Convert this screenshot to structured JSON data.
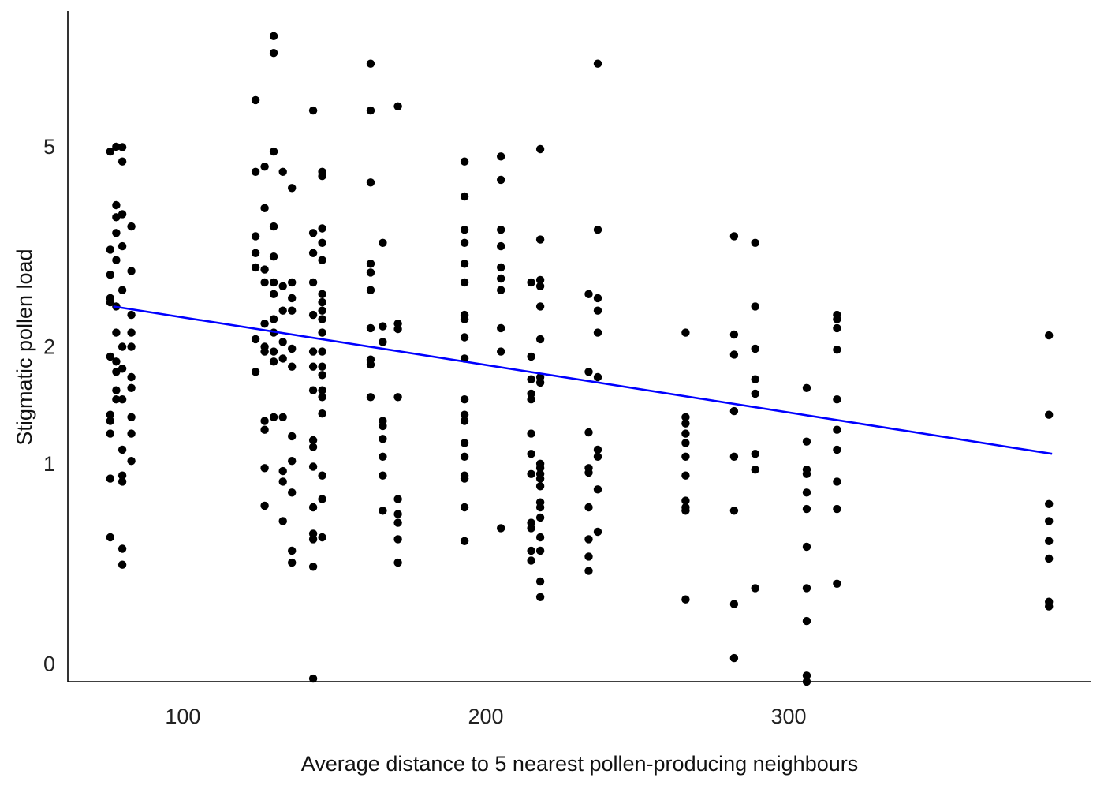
{
  "chart_data": {
    "type": "scatter",
    "title": "",
    "xlabel": "Average distance to 5 nearest pollen-producing neighbours",
    "ylabel": "Stigmatic pollen load",
    "xlim": [
      62,
      400
    ],
    "y_scale": "log1p",
    "ylim": [
      -0.06,
      8.6
    ],
    "x_ticks": [
      100,
      200,
      300
    ],
    "y_ticks": [
      0,
      1,
      2,
      5
    ],
    "grid": false,
    "legend": "none",
    "colors": {
      "points": "#000000",
      "fit": "#0000ff"
    },
    "fit_line": {
      "x": [
        77,
        387
      ],
      "y": [
        2.45,
        1.07
      ]
    },
    "points": [
      [
        76,
        4.9
      ],
      [
        76,
        3.2
      ],
      [
        76,
        2.85
      ],
      [
        76,
        2.55
      ],
      [
        76,
        2.5
      ],
      [
        76,
        1.9
      ],
      [
        76,
        1.37
      ],
      [
        76,
        1.32
      ],
      [
        76,
        1.22
      ],
      [
        76,
        0.9
      ],
      [
        76,
        0.55
      ],
      [
        78,
        5.0
      ],
      [
        78,
        3.9
      ],
      [
        78,
        3.7
      ],
      [
        78,
        3.45
      ],
      [
        78,
        3.05
      ],
      [
        78,
        2.45
      ],
      [
        78,
        2.15
      ],
      [
        78,
        1.85
      ],
      [
        78,
        1.75
      ],
      [
        78,
        1.58
      ],
      [
        78,
        1.5
      ],
      [
        80,
        4.99
      ],
      [
        80,
        4.7
      ],
      [
        80,
        3.75
      ],
      [
        80,
        3.25
      ],
      [
        80,
        2.65
      ],
      [
        80,
        2.0
      ],
      [
        80,
        1.78
      ],
      [
        80,
        1.5
      ],
      [
        80,
        1.1
      ],
      [
        80,
        0.92
      ],
      [
        80,
        0.88
      ],
      [
        80,
        0.49
      ],
      [
        80,
        0.41
      ],
      [
        83,
        3.55
      ],
      [
        83,
        2.9
      ],
      [
        83,
        2.35
      ],
      [
        83,
        2.15
      ],
      [
        83,
        2.0
      ],
      [
        83,
        1.7
      ],
      [
        83,
        1.6
      ],
      [
        83,
        1.35
      ],
      [
        83,
        1.22
      ],
      [
        83,
        1.02
      ],
      [
        124,
        6.05
      ],
      [
        124,
        4.5
      ],
      [
        124,
        3.4
      ],
      [
        124,
        3.15
      ],
      [
        124,
        2.95
      ],
      [
        124,
        2.08
      ],
      [
        124,
        1.75
      ],
      [
        127,
        3.85
      ],
      [
        127,
        4.6
      ],
      [
        127,
        2.92
      ],
      [
        127,
        2.75
      ],
      [
        127,
        2.25
      ],
      [
        127,
        2.0
      ],
      [
        127,
        1.95
      ],
      [
        127,
        1.32
      ],
      [
        127,
        1.25
      ],
      [
        127,
        0.97
      ],
      [
        127,
        0.73
      ],
      [
        130,
        7.8
      ],
      [
        130,
        7.3
      ],
      [
        130,
        4.9
      ],
      [
        130,
        3.55
      ],
      [
        130,
        3.1
      ],
      [
        130,
        2.75
      ],
      [
        130,
        2.6
      ],
      [
        130,
        2.3
      ],
      [
        130,
        2.15
      ],
      [
        130,
        1.95
      ],
      [
        130,
        1.85
      ],
      [
        130,
        1.35
      ],
      [
        133,
        4.5
      ],
      [
        133,
        2.7
      ],
      [
        133,
        2.4
      ],
      [
        133,
        2.05
      ],
      [
        133,
        1.88
      ],
      [
        133,
        1.35
      ],
      [
        133,
        0.95
      ],
      [
        133,
        0.88
      ],
      [
        133,
        0.64
      ],
      [
        136,
        4.2
      ],
      [
        136,
        2.75
      ],
      [
        136,
        2.55
      ],
      [
        136,
        2.4
      ],
      [
        136,
        1.98
      ],
      [
        136,
        1.8
      ],
      [
        136,
        1.2
      ],
      [
        136,
        1.02
      ],
      [
        136,
        0.81
      ],
      [
        136,
        0.48
      ],
      [
        136,
        0.42
      ],
      [
        143,
        5.8
      ],
      [
        143,
        3.45
      ],
      [
        143,
        3.15
      ],
      [
        143,
        2.75
      ],
      [
        143,
        2.35
      ],
      [
        143,
        1.95
      ],
      [
        143,
        1.8
      ],
      [
        143,
        1.58
      ],
      [
        143,
        1.17
      ],
      [
        143,
        1.12
      ],
      [
        143,
        0.98
      ],
      [
        143,
        0.72
      ],
      [
        143,
        0.57
      ],
      [
        143,
        0.54
      ],
      [
        143,
        0.4
      ],
      [
        143,
        -0.05
      ],
      [
        146,
        4.5
      ],
      [
        146,
        4.42
      ],
      [
        146,
        3.52
      ],
      [
        146,
        3.3
      ],
      [
        146,
        3.05
      ],
      [
        146,
        2.6
      ],
      [
        146,
        2.5
      ],
      [
        146,
        2.4
      ],
      [
        146,
        2.3
      ],
      [
        146,
        2.15
      ],
      [
        146,
        1.95
      ],
      [
        146,
        1.8
      ],
      [
        146,
        1.72
      ],
      [
        146,
        1.58
      ],
      [
        146,
        1.52
      ],
      [
        146,
        1.38
      ],
      [
        146,
        0.92
      ],
      [
        146,
        0.77
      ],
      [
        146,
        0.55
      ],
      [
        162,
        7.0
      ],
      [
        162,
        5.8
      ],
      [
        162,
        4.3
      ],
      [
        162,
        3.0
      ],
      [
        162,
        2.88
      ],
      [
        162,
        2.65
      ],
      [
        162,
        2.2
      ],
      [
        162,
        1.87
      ],
      [
        162,
        1.82
      ],
      [
        162,
        1.52
      ],
      [
        166,
        3.3
      ],
      [
        166,
        2.22
      ],
      [
        166,
        2.05
      ],
      [
        166,
        1.32
      ],
      [
        166,
        1.28
      ],
      [
        166,
        1.18
      ],
      [
        166,
        1.05
      ],
      [
        166,
        0.92
      ],
      [
        166,
        0.7
      ],
      [
        171,
        5.9
      ],
      [
        171,
        2.25
      ],
      [
        171,
        2.19
      ],
      [
        171,
        1.52
      ],
      [
        171,
        0.77
      ],
      [
        171,
        0.68
      ],
      [
        171,
        0.63
      ],
      [
        171,
        0.54
      ],
      [
        171,
        0.42
      ],
      [
        193,
        4.7
      ],
      [
        193,
        4.05
      ],
      [
        193,
        3.5
      ],
      [
        193,
        3.3
      ],
      [
        193,
        3.0
      ],
      [
        193,
        2.75
      ],
      [
        193,
        2.35
      ],
      [
        193,
        2.3
      ],
      [
        193,
        2.1
      ],
      [
        193,
        1.88
      ],
      [
        193,
        1.5
      ],
      [
        193,
        1.37
      ],
      [
        193,
        1.32
      ],
      [
        193,
        1.15
      ],
      [
        193,
        1.05
      ],
      [
        193,
        0.92
      ],
      [
        193,
        0.9
      ],
      [
        193,
        0.72
      ],
      [
        193,
        0.53
      ],
      [
        205,
        4.8
      ],
      [
        205,
        4.35
      ],
      [
        205,
        3.5
      ],
      [
        205,
        3.25
      ],
      [
        205,
        2.95
      ],
      [
        205,
        2.8
      ],
      [
        205,
        2.65
      ],
      [
        205,
        2.2
      ],
      [
        205,
        1.95
      ],
      [
        205,
        0.6
      ],
      [
        215,
        2.75
      ],
      [
        215,
        1.9
      ],
      [
        215,
        1.68
      ],
      [
        215,
        1.55
      ],
      [
        215,
        1.5
      ],
      [
        215,
        1.22
      ],
      [
        215,
        1.07
      ],
      [
        215,
        0.93
      ],
      [
        215,
        0.63
      ],
      [
        215,
        0.6
      ],
      [
        215,
        0.43
      ],
      [
        215,
        0.48
      ],
      [
        218,
        4.95
      ],
      [
        218,
        3.35
      ],
      [
        218,
        2.78
      ],
      [
        218,
        2.7
      ],
      [
        218,
        2.45
      ],
      [
        218,
        2.08
      ],
      [
        218,
        1.7
      ],
      [
        218,
        1.65
      ],
      [
        218,
        1.0
      ],
      [
        218,
        0.97
      ],
      [
        218,
        0.93
      ],
      [
        218,
        0.9
      ],
      [
        218,
        0.85
      ],
      [
        218,
        0.75
      ],
      [
        218,
        0.72
      ],
      [
        218,
        0.66
      ],
      [
        218,
        0.55
      ],
      [
        218,
        0.48
      ],
      [
        218,
        0.33
      ],
      [
        218,
        0.26
      ],
      [
        234,
        2.6
      ],
      [
        234,
        1.75
      ],
      [
        234,
        1.23
      ],
      [
        234,
        0.97
      ],
      [
        234,
        0.94
      ],
      [
        234,
        0.72
      ],
      [
        234,
        0.54
      ],
      [
        234,
        0.45
      ],
      [
        234,
        0.38
      ],
      [
        237,
        7.0
      ],
      [
        237,
        3.5
      ],
      [
        237,
        2.55
      ],
      [
        237,
        2.4
      ],
      [
        237,
        2.15
      ],
      [
        237,
        1.7
      ],
      [
        237,
        1.1
      ],
      [
        237,
        1.05
      ],
      [
        237,
        0.83
      ],
      [
        237,
        0.58
      ],
      [
        266,
        2.15
      ],
      [
        266,
        1.35
      ],
      [
        266,
        1.3
      ],
      [
        266,
        1.22
      ],
      [
        266,
        1.15
      ],
      [
        266,
        1.05
      ],
      [
        266,
        0.92
      ],
      [
        266,
        0.76
      ],
      [
        266,
        0.72
      ],
      [
        266,
        0.7
      ],
      [
        266,
        0.25
      ],
      [
        282,
        3.4
      ],
      [
        282,
        2.13
      ],
      [
        282,
        1.92
      ],
      [
        282,
        1.4
      ],
      [
        282,
        1.05
      ],
      [
        282,
        0.7
      ],
      [
        282,
        0.23
      ],
      [
        282,
        0.02
      ],
      [
        289,
        3.3
      ],
      [
        289,
        2.45
      ],
      [
        289,
        1.98
      ],
      [
        289,
        1.68
      ],
      [
        289,
        1.55
      ],
      [
        289,
        1.07
      ],
      [
        289,
        0.96
      ],
      [
        289,
        0.3
      ],
      [
        306,
        1.6
      ],
      [
        306,
        1.16
      ],
      [
        306,
        0.96
      ],
      [
        306,
        0.93
      ],
      [
        306,
        0.81
      ],
      [
        306,
        0.71
      ],
      [
        306,
        0.5
      ],
      [
        306,
        0.3
      ],
      [
        306,
        0.16
      ],
      [
        306,
        -0.04
      ],
      [
        306,
        -0.06
      ],
      [
        316,
        2.35
      ],
      [
        316,
        2.3
      ],
      [
        316,
        2.2
      ],
      [
        316,
        1.97
      ],
      [
        316,
        1.5
      ],
      [
        316,
        1.25
      ],
      [
        316,
        1.1
      ],
      [
        316,
        0.88
      ],
      [
        316,
        0.71
      ],
      [
        316,
        0.32
      ],
      [
        386,
        2.12
      ],
      [
        386,
        1.37
      ],
      [
        386,
        0.74
      ],
      [
        386,
        0.64
      ],
      [
        386,
        0.53
      ],
      [
        386,
        0.44
      ],
      [
        386,
        0.24
      ],
      [
        386,
        0.22
      ]
    ]
  }
}
